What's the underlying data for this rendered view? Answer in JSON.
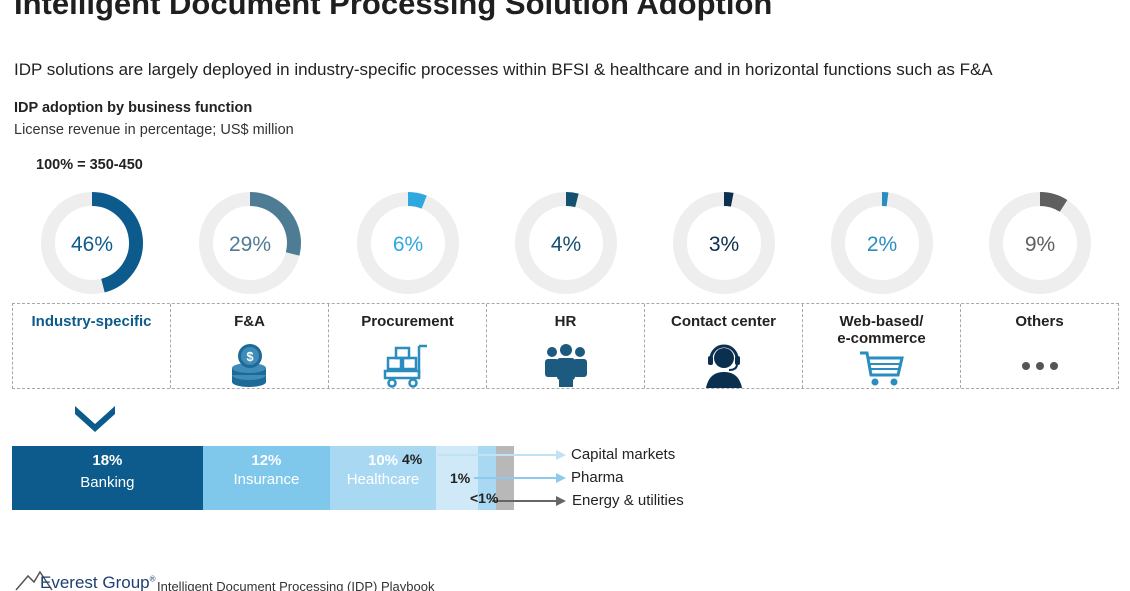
{
  "page": {
    "title": "Intelligent Document Processing Solution Adoption",
    "subtitle": "IDP solutions are largely deployed in industry-specific processes within BFSI & healthcare and in horizontal functions such as F&A"
  },
  "chart_data": [
    {
      "type": "pie",
      "title": "IDP adoption by business function",
      "subtitle": "License revenue in percentage; US$ million",
      "total_note": "100% = 350-450",
      "series": [
        {
          "name": "Industry-specific",
          "value": 46,
          "value_label": "46%",
          "color": "#0d5b8c",
          "label_color": "#0d5b8c",
          "icon": "none"
        },
        {
          "name": "F&A",
          "value": 29,
          "value_label": "29%",
          "color": "#4f7c95",
          "label_color": "#4f7c95",
          "icon": "coins-stack-icon"
        },
        {
          "name": "Procurement",
          "value": 6,
          "value_label": "6%",
          "color": "#2fa8df",
          "label_color": "#2fa8df",
          "icon": "forklift-boxes-icon"
        },
        {
          "name": "HR",
          "value": 4,
          "value_label": "4%",
          "color": "#14506f",
          "label_color": "#14506f",
          "icon": "people-group-icon"
        },
        {
          "name": "Contact center",
          "value": 3,
          "value_label": "3%",
          "color": "#0b2f4e",
          "label_color": "#0b2f4e",
          "icon": "headset-agent-icon"
        },
        {
          "name": "Web-based/ e-commerce",
          "value": 2,
          "value_label": "2%",
          "color": "#2a8dbf",
          "label_color": "#2a8dbf",
          "icon": "shopping-cart-icon"
        },
        {
          "name": "Others",
          "value": 9,
          "value_label": "9%",
          "color": "#5f5f5f",
          "label_color": "#5f5f5f",
          "icon": "ellipsis-icon"
        }
      ]
    },
    {
      "type": "bar",
      "orientation": "horizontal-stacked",
      "categories": [
        "Banking",
        "Insurance",
        "Healthcare",
        "Capital markets",
        "Pharma",
        "Energy & utilities"
      ],
      "values": [
        18,
        12,
        10,
        4,
        1,
        0.5
      ],
      "value_labels": [
        "18%",
        "12%",
        "10%",
        "4%",
        "1%",
        "<1%"
      ],
      "colors": [
        "#0d5b8c",
        "#7fc8ec",
        "#a9d9f2",
        "#cfe9f8",
        "#a9d9f2",
        "#b8b8b8"
      ],
      "label_inside": [
        true,
        true,
        true,
        false,
        false,
        false
      ],
      "callouts": [
        "Capital markets",
        "Pharma",
        "Energy & utilities"
      ]
    }
  ],
  "footer": {
    "brand": "Everest Group",
    "brand_mark": "®",
    "text": "Intelligent Document Processing (IDP) Playbook"
  }
}
